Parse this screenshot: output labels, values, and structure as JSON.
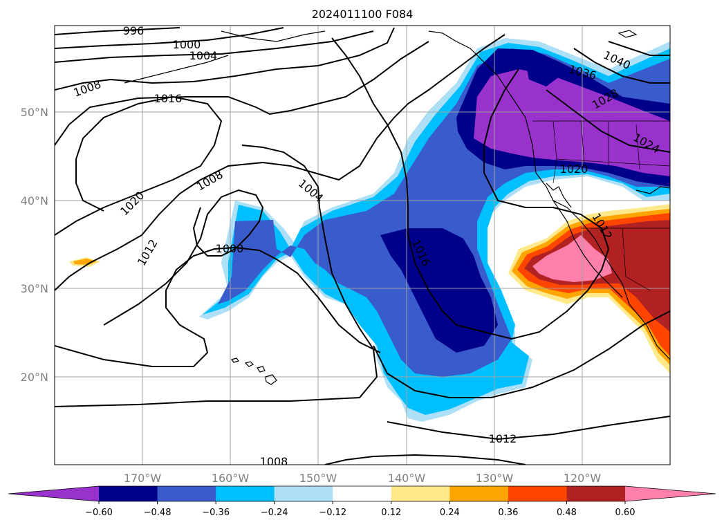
{
  "title": "2024011100 F084",
  "lat_labels": [
    "50°N",
    "40°N",
    "30°N",
    "20°N"
  ],
  "lon_labels": [
    "170°W",
    "160°W",
    "150°W",
    "140°W",
    "130°W",
    "120°W"
  ],
  "contour_labels": [
    "996",
    "1000",
    "1004",
    "1008",
    "1016",
    "1020",
    "1012",
    "1008",
    "1004",
    "1000",
    "1016",
    "1036",
    "1040",
    "1028",
    "1024",
    "1020",
    "1012",
    "1012",
    "1008"
  ],
  "colorbar": {
    "ticks": [
      "−0.60",
      "−0.48",
      "−0.36",
      "−0.24",
      "−0.12",
      "0.12",
      "0.24",
      "0.36",
      "0.48",
      "0.60"
    ],
    "colors": [
      "#9932CC",
      "#00008B",
      "#3A5BCB",
      "#00BFFF",
      "#ADE0F7",
      "#FFFFFF",
      "#FFE98A",
      "#FFA500",
      "#FF4500",
      "#B22222",
      "#FF80AA"
    ]
  }
}
